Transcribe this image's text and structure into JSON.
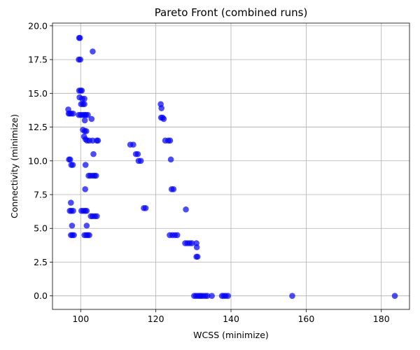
{
  "chart_data": {
    "type": "scatter",
    "title": "Pareto Front (combined runs)",
    "xlabel": "WCSS (minimize)",
    "ylabel": "Connectivity (minimize)",
    "xlim": [
      92.5,
      187.5
    ],
    "ylim": [
      -1.0,
      20.2
    ],
    "xticks": [
      100,
      120,
      140,
      160,
      180
    ],
    "yticks": [
      0.0,
      2.5,
      5.0,
      7.5,
      10.0,
      12.5,
      15.0,
      17.5,
      20.0
    ],
    "xtick_labels": [
      "100",
      "120",
      "140",
      "160",
      "180"
    ],
    "ytick_labels": [
      "0.0",
      "2.5",
      "5.0",
      "7.5",
      "10.0",
      "12.5",
      "15.0",
      "17.5",
      "20.0"
    ],
    "grid": true,
    "marker_color": "#0000ff",
    "marker_alpha": 0.7,
    "points": [
      [
        99.8,
        19.1
      ],
      [
        99.6,
        19.1
      ],
      [
        103.2,
        18.1
      ],
      [
        99.5,
        17.5
      ],
      [
        99.9,
        17.5
      ],
      [
        99.6,
        15.2
      ],
      [
        100.0,
        15.2
      ],
      [
        100.3,
        15.2
      ],
      [
        99.7,
        14.7
      ],
      [
        100.4,
        14.6
      ],
      [
        101.0,
        14.6
      ],
      [
        100.1,
        14.2
      ],
      [
        100.6,
        14.2
      ],
      [
        101.0,
        14.2
      ],
      [
        96.7,
        13.8
      ],
      [
        96.8,
        13.5
      ],
      [
        97.1,
        13.5
      ],
      [
        97.5,
        13.5
      ],
      [
        98.0,
        13.5
      ],
      [
        99.5,
        13.4
      ],
      [
        100.0,
        13.4
      ],
      [
        100.5,
        13.4
      ],
      [
        101.0,
        13.4
      ],
      [
        101.4,
        13.4
      ],
      [
        101.9,
        13.4
      ],
      [
        102.9,
        13.1
      ],
      [
        101.1,
        13.0
      ],
      [
        100.6,
        12.3
      ],
      [
        101.1,
        12.2
      ],
      [
        101.5,
        12.2
      ],
      [
        100.9,
        11.8
      ],
      [
        101.3,
        11.6
      ],
      [
        101.7,
        11.5
      ],
      [
        102.3,
        11.5
      ],
      [
        103.2,
        11.5
      ],
      [
        104.3,
        11.5
      ],
      [
        104.6,
        11.5
      ],
      [
        103.4,
        10.5
      ],
      [
        96.9,
        10.1
      ],
      [
        97.2,
        10.1
      ],
      [
        97.5,
        9.7
      ],
      [
        97.9,
        9.7
      ],
      [
        101.3,
        9.7
      ],
      [
        102.1,
        8.9
      ],
      [
        102.6,
        8.9
      ],
      [
        103.2,
        8.9
      ],
      [
        103.7,
        8.9
      ],
      [
        104.1,
        8.9
      ],
      [
        101.2,
        7.9
      ],
      [
        97.4,
        6.9
      ],
      [
        97.1,
        6.3
      ],
      [
        97.5,
        6.3
      ],
      [
        98.0,
        6.3
      ],
      [
        100.2,
        6.3
      ],
      [
        100.7,
        6.3
      ],
      [
        101.2,
        6.3
      ],
      [
        101.6,
        6.3
      ],
      [
        102.7,
        5.9
      ],
      [
        103.2,
        5.9
      ],
      [
        103.8,
        5.9
      ],
      [
        104.3,
        5.9
      ],
      [
        97.7,
        5.2
      ],
      [
        101.6,
        5.2
      ],
      [
        97.4,
        4.5
      ],
      [
        97.8,
        4.5
      ],
      [
        98.2,
        4.5
      ],
      [
        101.0,
        4.5
      ],
      [
        101.5,
        4.5
      ],
      [
        101.9,
        4.5
      ],
      [
        102.3,
        4.5
      ],
      [
        121.3,
        14.2
      ],
      [
        121.5,
        13.9
      ],
      [
        121.4,
        13.2
      ],
      [
        121.8,
        13.2
      ],
      [
        122.1,
        13.1
      ],
      [
        122.5,
        11.5
      ],
      [
        123.3,
        11.5
      ],
      [
        123.8,
        11.5
      ],
      [
        124.0,
        10.1
      ],
      [
        124.2,
        7.9
      ],
      [
        124.7,
        7.9
      ],
      [
        113.2,
        11.2
      ],
      [
        114.0,
        11.2
      ],
      [
        114.7,
        10.5
      ],
      [
        115.2,
        10.5
      ],
      [
        115.4,
        10.0
      ],
      [
        116.0,
        10.0
      ],
      [
        116.8,
        6.5
      ],
      [
        117.3,
        6.5
      ],
      [
        123.7,
        4.5
      ],
      [
        124.4,
        4.5
      ],
      [
        125.1,
        4.5
      ],
      [
        125.7,
        4.5
      ],
      [
        128.0,
        6.4
      ],
      [
        127.8,
        3.9
      ],
      [
        128.4,
        3.9
      ],
      [
        129.0,
        3.9
      ],
      [
        129.6,
        3.9
      ],
      [
        130.8,
        3.9
      ],
      [
        130.9,
        3.6
      ],
      [
        130.8,
        2.9
      ],
      [
        131.1,
        2.9
      ],
      [
        130.2,
        0.0
      ],
      [
        130.7,
        0.0
      ],
      [
        131.2,
        0.0
      ],
      [
        131.7,
        0.0
      ],
      [
        132.1,
        0.0
      ],
      [
        132.6,
        0.0
      ],
      [
        133.2,
        0.0
      ],
      [
        133.7,
        0.0
      ],
      [
        134.9,
        0.0
      ],
      [
        137.6,
        0.0
      ],
      [
        138.1,
        0.0
      ],
      [
        138.6,
        0.0
      ],
      [
        139.2,
        0.0
      ],
      [
        156.3,
        0.0
      ],
      [
        183.6,
        0.0
      ]
    ]
  }
}
